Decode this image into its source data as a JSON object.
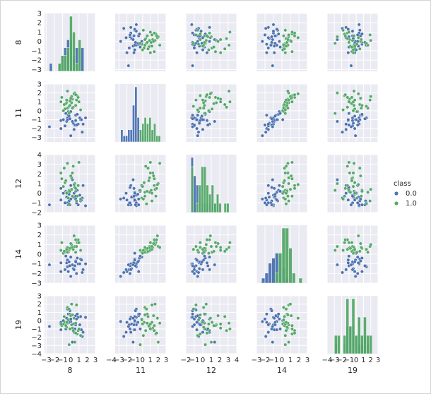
{
  "chart_data": {
    "type": "pairplot",
    "variables": [
      "8",
      "11",
      "12",
      "14",
      "19"
    ],
    "hue": {
      "title": "class",
      "levels": [
        "0.0",
        "1.0"
      ],
      "colors": [
        "#4c72b0",
        "#55a868"
      ]
    },
    "axes": {
      "8": {
        "lim": [
          -3.2,
          3
        ],
        "yticks": [
          -3,
          -2,
          -1,
          0,
          1,
          2,
          3
        ],
        "xticks": [
          -3,
          -2,
          -1,
          0,
          1,
          2,
          3
        ],
        "xtick_labels": [
          "−3",
          "−2",
          "−1",
          "0",
          "1",
          "2",
          "3"
        ]
      },
      "11": {
        "lim": [
          -3.5,
          3
        ],
        "yticks": [
          -3,
          -2,
          -1,
          0,
          1,
          2,
          3
        ],
        "xticks": [
          -4,
          -3,
          -2,
          -1,
          0,
          1,
          2,
          3
        ],
        "xtick_labels": [
          "−4",
          "−3",
          "−2",
          "−1",
          "0",
          "1",
          "2",
          "3"
        ]
      },
      "12": {
        "lim": [
          -2,
          4
        ],
        "yticks": [
          -2,
          -1,
          0,
          1,
          2,
          3,
          4
        ],
        "xticks": [
          -2,
          -1,
          0,
          1,
          2,
          3,
          4
        ],
        "xtick_labels": [
          "−2",
          "−1",
          "0",
          "1",
          "2",
          "3",
          "4"
        ]
      },
      "14": {
        "lim": [
          -3,
          3
        ],
        "yticks": [
          -3,
          -2,
          -1,
          0,
          1,
          2,
          3
        ],
        "xticks": [
          -3,
          -2,
          -1,
          0,
          1,
          2,
          3
        ],
        "xtick_labels": [
          "−3",
          "−2",
          "−1",
          "0",
          "1",
          "2",
          "3"
        ]
      },
      "19": {
        "lim": [
          -4,
          3
        ],
        "yticks": [
          -4,
          -3,
          -2,
          -1,
          0,
          1,
          2,
          3
        ],
        "xticks": [
          -4,
          -3,
          -2,
          -1,
          0,
          1,
          2,
          3
        ],
        "xtick_labels": [
          "−4",
          "−3",
          "−2",
          "−1",
          "0",
          "1",
          "2",
          "3"
        ]
      }
    },
    "ytick_labels": {
      "8": [
        "−3",
        "−2",
        "−1",
        "0",
        "1",
        "2",
        "3"
      ],
      "11": [
        "−3",
        "−2",
        "−1",
        "0",
        "1",
        "2",
        "3"
      ],
      "12": [
        "−2",
        "−1",
        "0",
        "1",
        "2",
        "3",
        "4"
      ],
      "14": [
        "−3",
        "−2",
        "−1",
        "0",
        "1",
        "2",
        "3"
      ],
      "19": [
        "−4",
        "−3",
        "−2",
        "−1",
        "0",
        "1",
        "2",
        "3"
      ]
    },
    "points": {
      "0.0": [
        [
          1.8,
          -0.8,
          -1.3,
          -1.0,
          0.4
        ],
        [
          1.2,
          -1.0,
          -0.8,
          -0.5,
          0.5
        ],
        [
          0.6,
          -0.5,
          -0.6,
          -0.7,
          0.6
        ],
        [
          0.9,
          -1.5,
          -1.2,
          -1.0,
          0.4
        ],
        [
          -0.2,
          -0.9,
          -0.8,
          -1.2,
          1.3
        ],
        [
          0.0,
          -2.8,
          -0.6,
          -2.3,
          -0.1
        ],
        [
          -0.5,
          -1.2,
          -0.4,
          -0.9,
          0.3
        ],
        [
          -1.2,
          -2.0,
          -0.7,
          -1.8,
          -0.2
        ],
        [
          0.3,
          -1.4,
          -0.4,
          -1.5,
          -0.4
        ],
        [
          -0.4,
          -0.8,
          -1.0,
          -1.3,
          1.4
        ],
        [
          -0.7,
          -1.7,
          -1.0,
          -1.6,
          -0.5
        ],
        [
          -0.3,
          -0.5,
          -1.2,
          -1.8,
          0.8
        ],
        [
          1.1,
          -0.8,
          -0.2,
          -1.0,
          -0.5
        ],
        [
          0.6,
          -1.1,
          -0.3,
          -0.8,
          -0.5
        ],
        [
          1.5,
          -1.5,
          0.8,
          -1.6,
          -1.4
        ],
        [
          0.4,
          -2.1,
          0.0,
          -1.6,
          -1.4
        ],
        [
          -1.2,
          -1.1,
          0.5,
          -0.9,
          -1.1
        ],
        [
          0.2,
          -1.2,
          1.4,
          -1.1,
          -2.6
        ],
        [
          0.5,
          -1.6,
          0.6,
          -1.2,
          -1.0
        ],
        [
          -0.4,
          -1.0,
          0.1,
          -0.6,
          -0.1
        ],
        [
          -0.2,
          -0.6,
          -0.1,
          -0.8,
          -0.2
        ],
        [
          -2.6,
          -1.8,
          -1.2,
          -1.1,
          -0.7
        ],
        [
          1.4,
          -2.4,
          -0.5,
          -1.9,
          -1.9
        ],
        [
          -0.9,
          -1.0,
          0.0,
          0.1,
          0.0
        ],
        [
          0.0,
          -0.1,
          0.8,
          -0.3,
          0.2
        ],
        [
          0.8,
          -0.4,
          0.3,
          -0.4,
          0.8
        ],
        [
          -0.1,
          -0.9,
          -1.2,
          -1.2,
          1.2
        ],
        [
          0.7,
          -1.6,
          -1.0,
          -2.0,
          0.2
        ],
        [
          1.3,
          -1.0,
          -0.7,
          -0.6,
          -1.1
        ],
        [
          -0.6,
          -0.3,
          0.2,
          -0.2,
          -1.0
        ]
      ],
      "1.0": [
        [
          0.2,
          1.3,
          2.1,
          0.7,
          -0.9
        ],
        [
          0.1,
          0.9,
          1.6,
          0.8,
          -0.5
        ],
        [
          -0.7,
          0.2,
          1.1,
          0.2,
          -0.2
        ],
        [
          0.8,
          1.7,
          -0.3,
          1.2,
          -1.6
        ],
        [
          0.9,
          1.5,
          0.8,
          1.5,
          -1.2
        ],
        [
          -0.1,
          1.1,
          0.3,
          0.6,
          -1.0
        ],
        [
          -1.1,
          1.5,
          1.5,
          1.2,
          -0.6
        ],
        [
          -0.5,
          0.9,
          0.1,
          0.6,
          -0.8
        ],
        [
          0.6,
          0.6,
          0.2,
          0.2,
          -0.3
        ],
        [
          -0.3,
          -0.1,
          -0.5,
          0.2,
          0.1
        ],
        [
          0.3,
          0.4,
          2.8,
          0.5,
          -1.2
        ],
        [
          -0.9,
          0.0,
          0.7,
          0.1,
          -0.4
        ],
        [
          -0.2,
          -0.3,
          0.3,
          0.4,
          -2.9
        ],
        [
          -0.6,
          0.8,
          1.3,
          0.3,
          -0.6
        ],
        [
          0.5,
          2.0,
          1.0,
          0.8,
          -2.6
        ],
        [
          1.0,
          1.0,
          3.2,
          1.2,
          -1.0
        ],
        [
          -0.4,
          0.3,
          0.1,
          0.2,
          1.6
        ],
        [
          0.7,
          1.2,
          -0.8,
          0.8,
          1.9
        ],
        [
          -0.2,
          0.5,
          -1.1,
          0.5,
          1.4
        ],
        [
          0.1,
          1.6,
          0.4,
          1.0,
          2.0
        ],
        [
          -0.8,
          0.7,
          2.6,
          0.3,
          0.5
        ],
        [
          0.4,
          1.9,
          0.9,
          1.9,
          0.3
        ],
        [
          -0.1,
          0.6,
          0.2,
          0.6,
          0.8
        ],
        [
          0.0,
          1.4,
          1.8,
          1.1,
          0.6
        ],
        [
          -0.4,
          2.2,
          3.1,
          0.7,
          -0.3
        ],
        [
          1.2,
          0.1,
          -0.6,
          0.4,
          -1.8
        ],
        [
          0.6,
          1.8,
          0.5,
          1.5,
          -1.5
        ],
        [
          -1.2,
          1.0,
          2.1,
          0.4,
          -0.4
        ],
        [
          0.2,
          0.3,
          -0.3,
          0.7,
          0.7
        ],
        [
          -0.5,
          1.2,
          0.0,
          0.5,
          -0.2
        ]
      ]
    },
    "histograms": {
      "8": {
        "edges": [
          -2.6,
          -2.25,
          -1.9,
          -1.55,
          -1.2,
          -0.85,
          -0.5,
          -0.15,
          0.2,
          0.55,
          0.9,
          1.25,
          1.6
        ],
        "0.0": [
          1,
          0,
          0,
          1,
          2,
          3,
          4,
          4,
          2,
          3,
          3,
          3
        ],
        "1.0": [
          0,
          0,
          0,
          1,
          2,
          2,
          3,
          7,
          5,
          1,
          4,
          0
        ]
      },
      "11": {
        "edges": [
          -2.8,
          -2.5,
          -2.2,
          -1.9,
          -1.6,
          -1.3,
          -1.0,
          -0.7,
          -0.4,
          -0.1,
          0.2,
          0.5,
          0.8,
          1.1,
          1.4,
          1.7,
          2.0,
          2.3
        ],
        "0.0": [
          2,
          1,
          1,
          2,
          2,
          6,
          9,
          4,
          2,
          1,
          0,
          0,
          0,
          0,
          0,
          0,
          0
        ],
        "1.0": [
          0,
          0,
          0,
          0,
          0,
          0,
          0,
          0,
          2,
          3,
          4,
          3,
          4,
          2,
          3,
          1,
          1
        ]
      },
      "12": {
        "edges": [
          -1.4,
          -1.1,
          -0.8,
          -0.5,
          -0.2,
          0.1,
          0.4,
          0.7,
          1.0,
          1.3,
          1.6,
          1.9,
          2.2,
          2.5,
          2.8,
          3.1
        ],
        "0.0": [
          6,
          4,
          3,
          2,
          1,
          1,
          1,
          1,
          1,
          1,
          1,
          0,
          0,
          0,
          0
        ],
        "1.0": [
          5,
          0,
          1,
          3,
          5,
          5,
          3,
          2,
          3,
          1,
          2,
          1,
          0,
          1,
          1
        ]
      },
      "14": {
        "edges": [
          -2.4,
          -2.0,
          -1.6,
          -1.2,
          -0.8,
          -0.4,
          0.0,
          0.4,
          0.8,
          1.2,
          1.6,
          2.0,
          2.4
        ],
        "0.0": [
          1,
          2,
          4,
          5,
          6,
          6,
          3,
          1,
          0,
          0,
          0,
          0
        ],
        "1.0": [
          0,
          0,
          0,
          0,
          2,
          6,
          11,
          11,
          7,
          2,
          0,
          1
        ]
      },
      "19": {
        "edges": [
          -3.0,
          -2.6,
          -2.2,
          -1.8,
          -1.4,
          -1.0,
          -0.6,
          -0.2,
          0.2,
          0.6,
          1.0,
          1.4,
          1.8,
          2.2
        ],
        "0.0": [
          1,
          0,
          0,
          1,
          3,
          3,
          3,
          2,
          1,
          1,
          2,
          1,
          0
        ],
        "1.0": [
          2,
          2,
          0,
          2,
          6,
          3,
          6,
          2,
          4,
          2,
          4,
          2,
          2
        ]
      }
    }
  }
}
